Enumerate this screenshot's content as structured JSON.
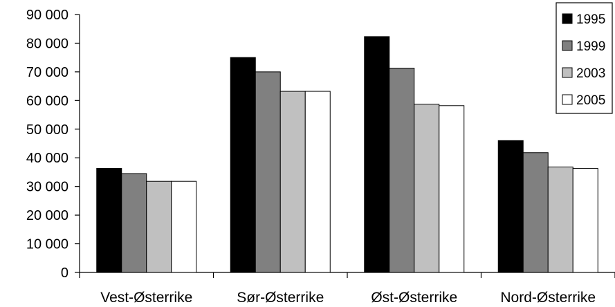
{
  "chart_data": {
    "type": "bar",
    "title": "",
    "xlabel": "",
    "ylabel": "",
    "ylim": [
      0,
      90000
    ],
    "yticks": [
      0,
      10000,
      20000,
      30000,
      40000,
      50000,
      60000,
      70000,
      80000,
      90000
    ],
    "ytick_labels": [
      "0",
      "10 000",
      "20 000",
      "30 000",
      "40 000",
      "50 000",
      "60 000",
      "70 000",
      "80 000",
      "90 000"
    ],
    "grid": false,
    "legend_position": "top-right",
    "categories": [
      "Vest-Østerrike",
      "Sør-Østerrike",
      "Øst-Østerrike",
      "Nord-Østerrike"
    ],
    "series": [
      {
        "name": "1995",
        "color": "#000000",
        "values": [
          36300,
          75000,
          82300,
          46000
        ]
      },
      {
        "name": "1999",
        "color": "#808080",
        "values": [
          34500,
          70000,
          71300,
          41800
        ]
      },
      {
        "name": "2003",
        "color": "#c0c0c0",
        "values": [
          31800,
          63200,
          58700,
          36800
        ]
      },
      {
        "name": "2005",
        "color": "#ffffff",
        "values": [
          31800,
          63200,
          58200,
          36300
        ]
      }
    ]
  }
}
